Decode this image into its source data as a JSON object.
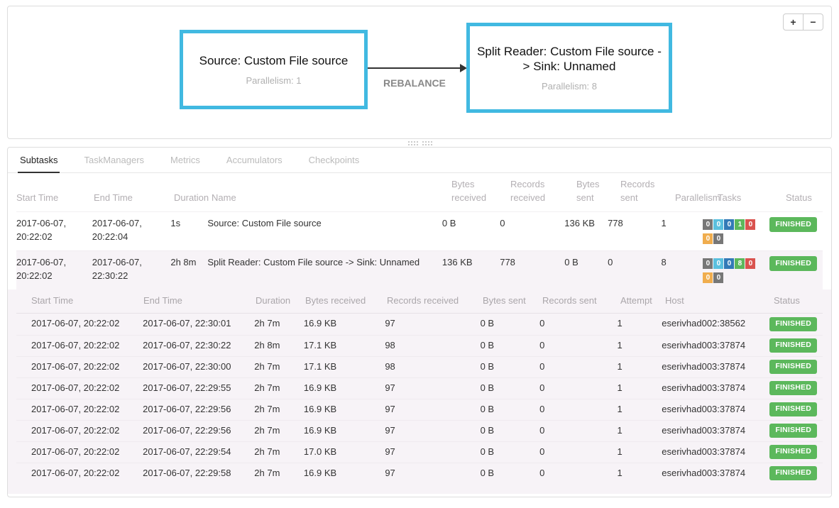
{
  "graph": {
    "nodes": [
      {
        "title": "Source: Custom File source",
        "parallelism_label": "Parallelism: 1"
      },
      {
        "title": "Split Reader: Custom File source -> Sink: Unnamed",
        "parallelism_label": "Parallelism: 8"
      }
    ],
    "edge_label": "REBALANCE",
    "node_border_color": "#41b9e1"
  },
  "zoom_controls": {
    "zoom_in": "+",
    "zoom_out": "−"
  },
  "tabs": [
    {
      "label": "Subtasks"
    },
    {
      "label": "TaskManagers"
    },
    {
      "label": "Metrics"
    },
    {
      "label": "Accumulators"
    },
    {
      "label": "Checkpoints"
    }
  ],
  "main_table": {
    "headers": [
      "Start Time",
      "End Time",
      "Duration",
      "Name",
      "Bytes received",
      "Records received",
      "Bytes sent",
      "Records sent",
      "Parallelism",
      "Tasks",
      "Status"
    ],
    "rows": [
      {
        "start_time": "2017-06-07, 20:22:02",
        "end_time": "2017-06-07, 20:22:04",
        "duration": "1s",
        "name": "Source: Custom File source",
        "bytes_received": "0 B",
        "records_received": "0",
        "bytes_sent": "136 KB",
        "records_sent": "778",
        "parallelism": "1",
        "tasks": [
          {
            "count": "0",
            "color": "#777777"
          },
          {
            "count": "0",
            "color": "#5bc0de"
          },
          {
            "count": "0",
            "color": "#337ab7"
          },
          {
            "count": "1",
            "color": "#5cb85c"
          },
          {
            "count": "0",
            "color": "#d9534f"
          },
          {
            "count": "0",
            "color": "#f0ad4e"
          },
          {
            "count": "0",
            "color": "#777777"
          }
        ],
        "status": "FINISHED",
        "selected": false
      },
      {
        "start_time": "2017-06-07, 20:22:02",
        "end_time": "2017-06-07, 22:30:22",
        "duration": "2h 8m",
        "name": "Split Reader: Custom File source -> Sink: Unnamed",
        "bytes_received": "136 KB",
        "records_received": "778",
        "bytes_sent": "0 B",
        "records_sent": "0",
        "parallelism": "8",
        "tasks": [
          {
            "count": "0",
            "color": "#777777"
          },
          {
            "count": "0",
            "color": "#5bc0de"
          },
          {
            "count": "0",
            "color": "#337ab7"
          },
          {
            "count": "8",
            "color": "#5cb85c"
          },
          {
            "count": "0",
            "color": "#d9534f"
          },
          {
            "count": "0",
            "color": "#f0ad4e"
          },
          {
            "count": "0",
            "color": "#777777"
          }
        ],
        "status": "FINISHED",
        "selected": true
      }
    ]
  },
  "subtask_table": {
    "headers": [
      "Start Time",
      "End Time",
      "Duration",
      "Bytes received",
      "Records received",
      "Bytes sent",
      "Records sent",
      "Attempt",
      "Host",
      "Status"
    ],
    "rows": [
      {
        "start_time": "2017-06-07, 20:22:02",
        "end_time": "2017-06-07, 22:30:01",
        "duration": "2h 7m",
        "bytes_received": "16.9 KB",
        "records_received": "97",
        "bytes_sent": "0 B",
        "records_sent": "0",
        "attempt": "1",
        "host": "eserivhad002:38562",
        "status": "FINISHED"
      },
      {
        "start_time": "2017-06-07, 20:22:02",
        "end_time": "2017-06-07, 22:30:22",
        "duration": "2h 8m",
        "bytes_received": "17.1 KB",
        "records_received": "98",
        "bytes_sent": "0 B",
        "records_sent": "0",
        "attempt": "1",
        "host": "eserivhad003:37874",
        "status": "FINISHED"
      },
      {
        "start_time": "2017-06-07, 20:22:02",
        "end_time": "2017-06-07, 22:30:00",
        "duration": "2h 7m",
        "bytes_received": "17.1 KB",
        "records_received": "98",
        "bytes_sent": "0 B",
        "records_sent": "0",
        "attempt": "1",
        "host": "eserivhad003:37874",
        "status": "FINISHED"
      },
      {
        "start_time": "2017-06-07, 20:22:02",
        "end_time": "2017-06-07, 22:29:55",
        "duration": "2h 7m",
        "bytes_received": "16.9 KB",
        "records_received": "97",
        "bytes_sent": "0 B",
        "records_sent": "0",
        "attempt": "1",
        "host": "eserivhad003:37874",
        "status": "FINISHED"
      },
      {
        "start_time": "2017-06-07, 20:22:02",
        "end_time": "2017-06-07, 22:29:56",
        "duration": "2h 7m",
        "bytes_received": "16.9 KB",
        "records_received": "97",
        "bytes_sent": "0 B",
        "records_sent": "0",
        "attempt": "1",
        "host": "eserivhad003:37874",
        "status": "FINISHED"
      },
      {
        "start_time": "2017-06-07, 20:22:02",
        "end_time": "2017-06-07, 22:29:56",
        "duration": "2h 7m",
        "bytes_received": "16.9 KB",
        "records_received": "97",
        "bytes_sent": "0 B",
        "records_sent": "0",
        "attempt": "1",
        "host": "eserivhad003:37874",
        "status": "FINISHED"
      },
      {
        "start_time": "2017-06-07, 20:22:02",
        "end_time": "2017-06-07, 22:29:54",
        "duration": "2h 7m",
        "bytes_received": "17.0 KB",
        "records_received": "97",
        "bytes_sent": "0 B",
        "records_sent": "0",
        "attempt": "1",
        "host": "eserivhad003:37874",
        "status": "FINISHED"
      },
      {
        "start_time": "2017-06-07, 20:22:02",
        "end_time": "2017-06-07, 22:29:58",
        "duration": "2h 7m",
        "bytes_received": "16.9 KB",
        "records_received": "97",
        "bytes_sent": "0 B",
        "records_sent": "0",
        "attempt": "1",
        "host": "eserivhad003:37874",
        "status": "FINISHED"
      }
    ]
  },
  "colors": {
    "status_finished": "#5cb85c",
    "selected_row_bg": "#f7f3f7"
  }
}
